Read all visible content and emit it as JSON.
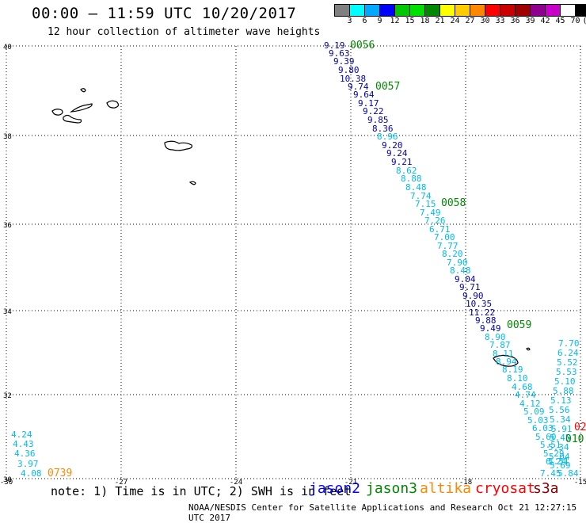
{
  "header": {
    "title": "00:00 – 11:59 UTC 10/20/2017",
    "subtitle": "12 hour collection of altimeter wave heights"
  },
  "colorbar": {
    "colors": [
      "#808080",
      "#00ffff",
      "#00a8ff",
      "#0000ff",
      "#00c800",
      "#00e000",
      "#008800",
      "#ffff00",
      "#ffcc00",
      "#ff8800",
      "#ff0000",
      "#c80000",
      "#a00000",
      "#900090",
      "#c800c8",
      "#ffffff",
      "#000000"
    ],
    "labels": [
      "3",
      "6",
      "9",
      "12",
      "15",
      "18",
      "21",
      "24",
      "27",
      "30",
      "33",
      "36",
      "39",
      "42",
      "45",
      "70",
      "(ft)"
    ]
  },
  "axes": {
    "lat_labels": [
      "40",
      "38",
      "36",
      "34",
      "32",
      "30"
    ],
    "lon_labels": [
      "-30",
      "-27",
      "-24",
      "-21",
      "-18",
      "-15"
    ]
  },
  "passes": [
    {
      "label": "0056",
      "color": "#008800"
    },
    {
      "label": "0057",
      "color": "#008800"
    },
    {
      "label": "0058",
      "color": "#008800"
    },
    {
      "label": "0059",
      "color": "#008800"
    },
    {
      "label": "0739",
      "color": "#ff8800"
    },
    {
      "label": "010",
      "color": "#008800"
    },
    {
      "label": "02",
      "color": "#ff0000"
    }
  ],
  "track_main": [
    {
      "v": "9.19",
      "c": "#0000aa"
    },
    {
      "v": "9.63",
      "c": "#0000aa"
    },
    {
      "v": "9.39",
      "c": "#0000aa"
    },
    {
      "v": "9.80",
      "c": "#0000aa"
    },
    {
      "v": "10.38",
      "c": "#0000aa"
    },
    {
      "v": "9.74",
      "c": "#0000aa"
    },
    {
      "v": "9.64",
      "c": "#0000aa"
    },
    {
      "v": "9.17",
      "c": "#0000aa"
    },
    {
      "v": "9.22",
      "c": "#0000aa"
    },
    {
      "v": "9.85",
      "c": "#0000aa"
    },
    {
      "v": "8.36",
      "c": "#0000aa"
    },
    {
      "v": "8.96",
      "c": "#00bbee"
    },
    {
      "v": "9.20",
      "c": "#0000aa"
    },
    {
      "v": "9.24",
      "c": "#0000aa"
    },
    {
      "v": "9.21",
      "c": "#0000aa"
    },
    {
      "v": "8.62",
      "c": "#00bbee"
    },
    {
      "v": "8.88",
      "c": "#00bbee"
    },
    {
      "v": "8.48",
      "c": "#00bbee"
    },
    {
      "v": "7.74",
      "c": "#00bbee"
    },
    {
      "v": "7.15",
      "c": "#00bbee"
    },
    {
      "v": "7.49",
      "c": "#00bbee"
    },
    {
      "v": "7.26",
      "c": "#00bbee"
    },
    {
      "v": "6.71",
      "c": "#00bbee"
    },
    {
      "v": "7.00",
      "c": "#00bbee"
    },
    {
      "v": "7.77",
      "c": "#00bbee"
    },
    {
      "v": "8.20",
      "c": "#00bbee"
    },
    {
      "v": "7.90",
      "c": "#00bbee"
    },
    {
      "v": "8.48",
      "c": "#00bbee"
    },
    {
      "v": "9.04",
      "c": "#0000aa"
    },
    {
      "v": "9.71",
      "c": "#0000aa"
    },
    {
      "v": "9.90",
      "c": "#0000aa"
    },
    {
      "v": "10.35",
      "c": "#0000aa"
    },
    {
      "v": "11.22",
      "c": "#0000aa"
    },
    {
      "v": "9.88",
      "c": "#0000aa"
    },
    {
      "v": "9.49",
      "c": "#0000aa"
    },
    {
      "v": "8.90",
      "c": "#00bbee"
    },
    {
      "v": "7.87",
      "c": "#00bbee"
    },
    {
      "v": "8.11",
      "c": "#00bbee"
    },
    {
      "v": "8.94",
      "c": "#00bbee"
    },
    {
      "v": "8.19",
      "c": "#00bbee"
    },
    {
      "v": "8.10",
      "c": "#00bbee"
    },
    {
      "v": "4.68",
      "c": "#00bbee"
    },
    {
      "v": "4.74",
      "c": "#00bbee"
    },
    {
      "v": "4.12",
      "c": "#00bbee"
    },
    {
      "v": "5.09",
      "c": "#00bbee"
    },
    {
      "v": "5.03",
      "c": "#00bbee"
    },
    {
      "v": "6.03",
      "c": "#00bbee"
    },
    {
      "v": "5.60",
      "c": "#00bbee"
    },
    {
      "v": "5.51",
      "c": "#00bbee"
    },
    {
      "v": "5.29",
      "c": "#00bbee"
    },
    {
      "v": "6.24",
      "c": "#00bbee"
    },
    {
      "v": "5.51",
      "c": "#00bbee"
    },
    {
      "v": "7.45",
      "c": "#00bbee"
    }
  ],
  "track_east": [
    {
      "v": "7.70",
      "c": "#00bbee"
    },
    {
      "v": "6.24",
      "c": "#00bbee"
    },
    {
      "v": "5.52",
      "c": "#00bbee"
    },
    {
      "v": "5.53",
      "c": "#00bbee"
    },
    {
      "v": "5.10",
      "c": "#00bbee"
    },
    {
      "v": "5.88",
      "c": "#00bbee"
    },
    {
      "v": "5.13",
      "c": "#00bbee"
    },
    {
      "v": "5.56",
      "c": "#00bbee"
    },
    {
      "v": "5.34",
      "c": "#00bbee"
    },
    {
      "v": "5.91",
      "c": "#00bbee"
    },
    {
      "v": "5.45",
      "c": "#00bbee"
    },
    {
      "v": "5.34",
      "c": "#00bbee"
    },
    {
      "v": "5.04",
      "c": "#00bbee"
    },
    {
      "v": "5.69",
      "c": "#00bbee"
    },
    {
      "v": "5.84",
      "c": "#00bbee"
    }
  ],
  "track_sw": [
    {
      "v": "4.24",
      "c": "#00bbee"
    },
    {
      "v": "4.43",
      "c": "#00bbee"
    },
    {
      "v": "4.36",
      "c": "#00bbee"
    },
    {
      "v": "3.97",
      "c": "#00bbee"
    },
    {
      "v": "4.08",
      "c": "#00bbee"
    }
  ],
  "footer": {
    "note": "note: 1) Time is in UTC; 2) SWH is in feet",
    "satellites": [
      {
        "name": "jason2",
        "color": "#0000ff"
      },
      {
        "name": "jason3",
        "color": "#008800"
      },
      {
        "name": "altika",
        "color": "#ff8800"
      },
      {
        "name": "cryosat",
        "color": "#ff0000"
      },
      {
        "name": "s3a",
        "color": "#880000"
      }
    ],
    "credit": "NOAA/NESDIS Center for Satellite Applications and Research    Oct 21 12:27:15 UTC 2017"
  }
}
